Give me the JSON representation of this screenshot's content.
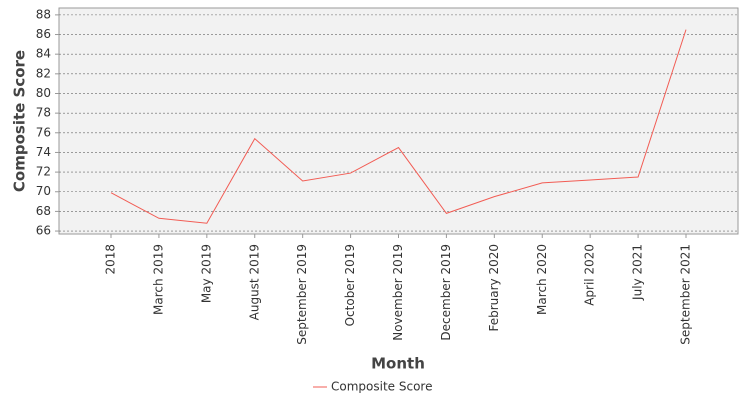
{
  "chart_data": {
    "type": "line",
    "x_label": "Month",
    "y_label": "Composite Score",
    "categories": [
      "2018",
      "March 2019",
      "May 2019",
      "August 2019",
      "September 2019",
      "October 2019",
      "November 2019",
      "December 2019",
      "February 2020",
      "March 2020",
      "April 2020",
      "July 2021",
      "September 2021"
    ],
    "series": [
      {
        "name": "Composite Score",
        "color": "#f25c54",
        "values": [
          69.9,
          67.3,
          66.8,
          75.4,
          71.1,
          71.9,
          74.5,
          67.8,
          69.5,
          70.9,
          71.2,
          71.5,
          86.5
        ]
      }
    ],
    "ylim": [
      65.7,
      88.7
    ],
    "yticks": [
      66,
      68,
      70,
      72,
      74,
      76,
      78,
      80,
      82,
      84,
      86,
      88
    ],
    "grid": true
  }
}
